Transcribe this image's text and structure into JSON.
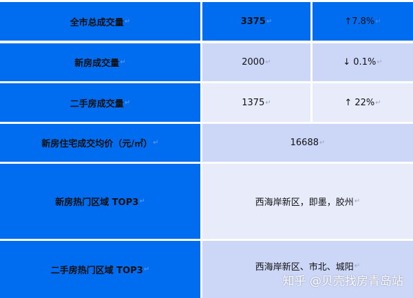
{
  "colors": {
    "header_blue": "#006cf0",
    "light_row_a": "#ccd6f6",
    "light_row_b": "#e7ebfa"
  },
  "rows": [
    {
      "label": "全市总成交量",
      "value": "3375",
      "change": "↑7.8%"
    },
    {
      "label": "新房成交量",
      "value": "2000",
      "change": "↓ 0.1%"
    },
    {
      "label": "二手房成交量",
      "value": "1375",
      "change": "↑ 22%"
    },
    {
      "label": "新房住宅成交均价（元/㎡）",
      "value": "16688"
    },
    {
      "label": "新房热门区域 TOP3",
      "value": "西海岸新区，即墨，胶州"
    },
    {
      "label": "二手房热门区域 TOP3",
      "value": "西海岸新区、市北、城阳"
    }
  ],
  "watermark": "知乎 @贝壳找房青岛站"
}
